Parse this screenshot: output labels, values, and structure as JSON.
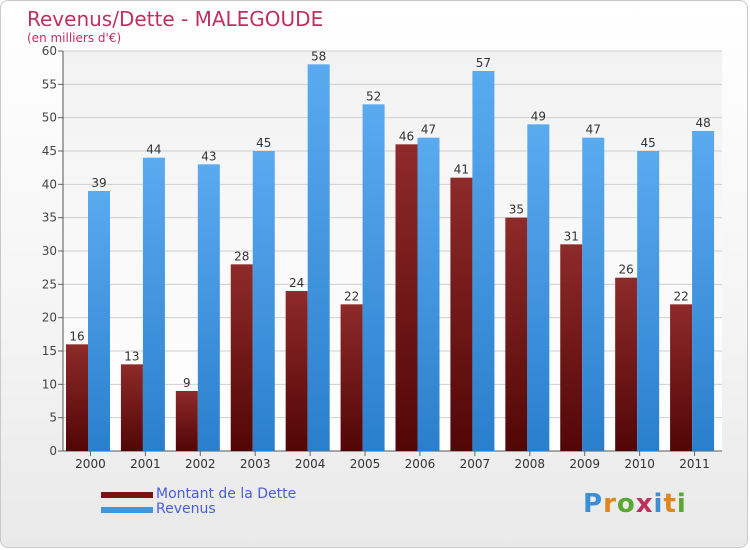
{
  "header": {
    "title": "Revenus/Dette - MALEGOUDE",
    "subtitle": "(en milliers d'€)"
  },
  "chart_data": {
    "type": "bar",
    "title": "Revenus/Dette - MALEGOUDE",
    "ylabel": "(en milliers d'€)",
    "xlabel": "",
    "categories": [
      "2000",
      "2001",
      "2002",
      "2003",
      "2004",
      "2005",
      "2006",
      "2007",
      "2008",
      "2009",
      "2010",
      "2011"
    ],
    "series": [
      {
        "name": "Montant de la Dette",
        "color": "#7a1414",
        "values": [
          16,
          13,
          9,
          28,
          24,
          22,
          46,
          41,
          35,
          31,
          26,
          22
        ]
      },
      {
        "name": "Revenus",
        "color": "#3f97e0",
        "values": [
          39,
          44,
          43,
          45,
          58,
          52,
          47,
          57,
          49,
          47,
          45,
          48
        ]
      }
    ],
    "ylim": [
      0,
      60
    ],
    "yticks": [
      0,
      5,
      10,
      15,
      20,
      25,
      30,
      35,
      40,
      45,
      50,
      55,
      60
    ],
    "grid": true,
    "legend": "bottom-left"
  },
  "legend": {
    "items": [
      {
        "label": "Montant de la Dette",
        "color": "#7a1414"
      },
      {
        "label": "Revenus",
        "color": "#3f97e0"
      }
    ]
  },
  "logo": {
    "letters": [
      "P",
      "r",
      "o",
      "x",
      "i",
      "t",
      "i"
    ],
    "colors": [
      "#3b8fd6",
      "#e0861d",
      "#5aa832",
      "#c0305f",
      "#3b8fd6",
      "#e0861d",
      "#5aa832"
    ]
  }
}
